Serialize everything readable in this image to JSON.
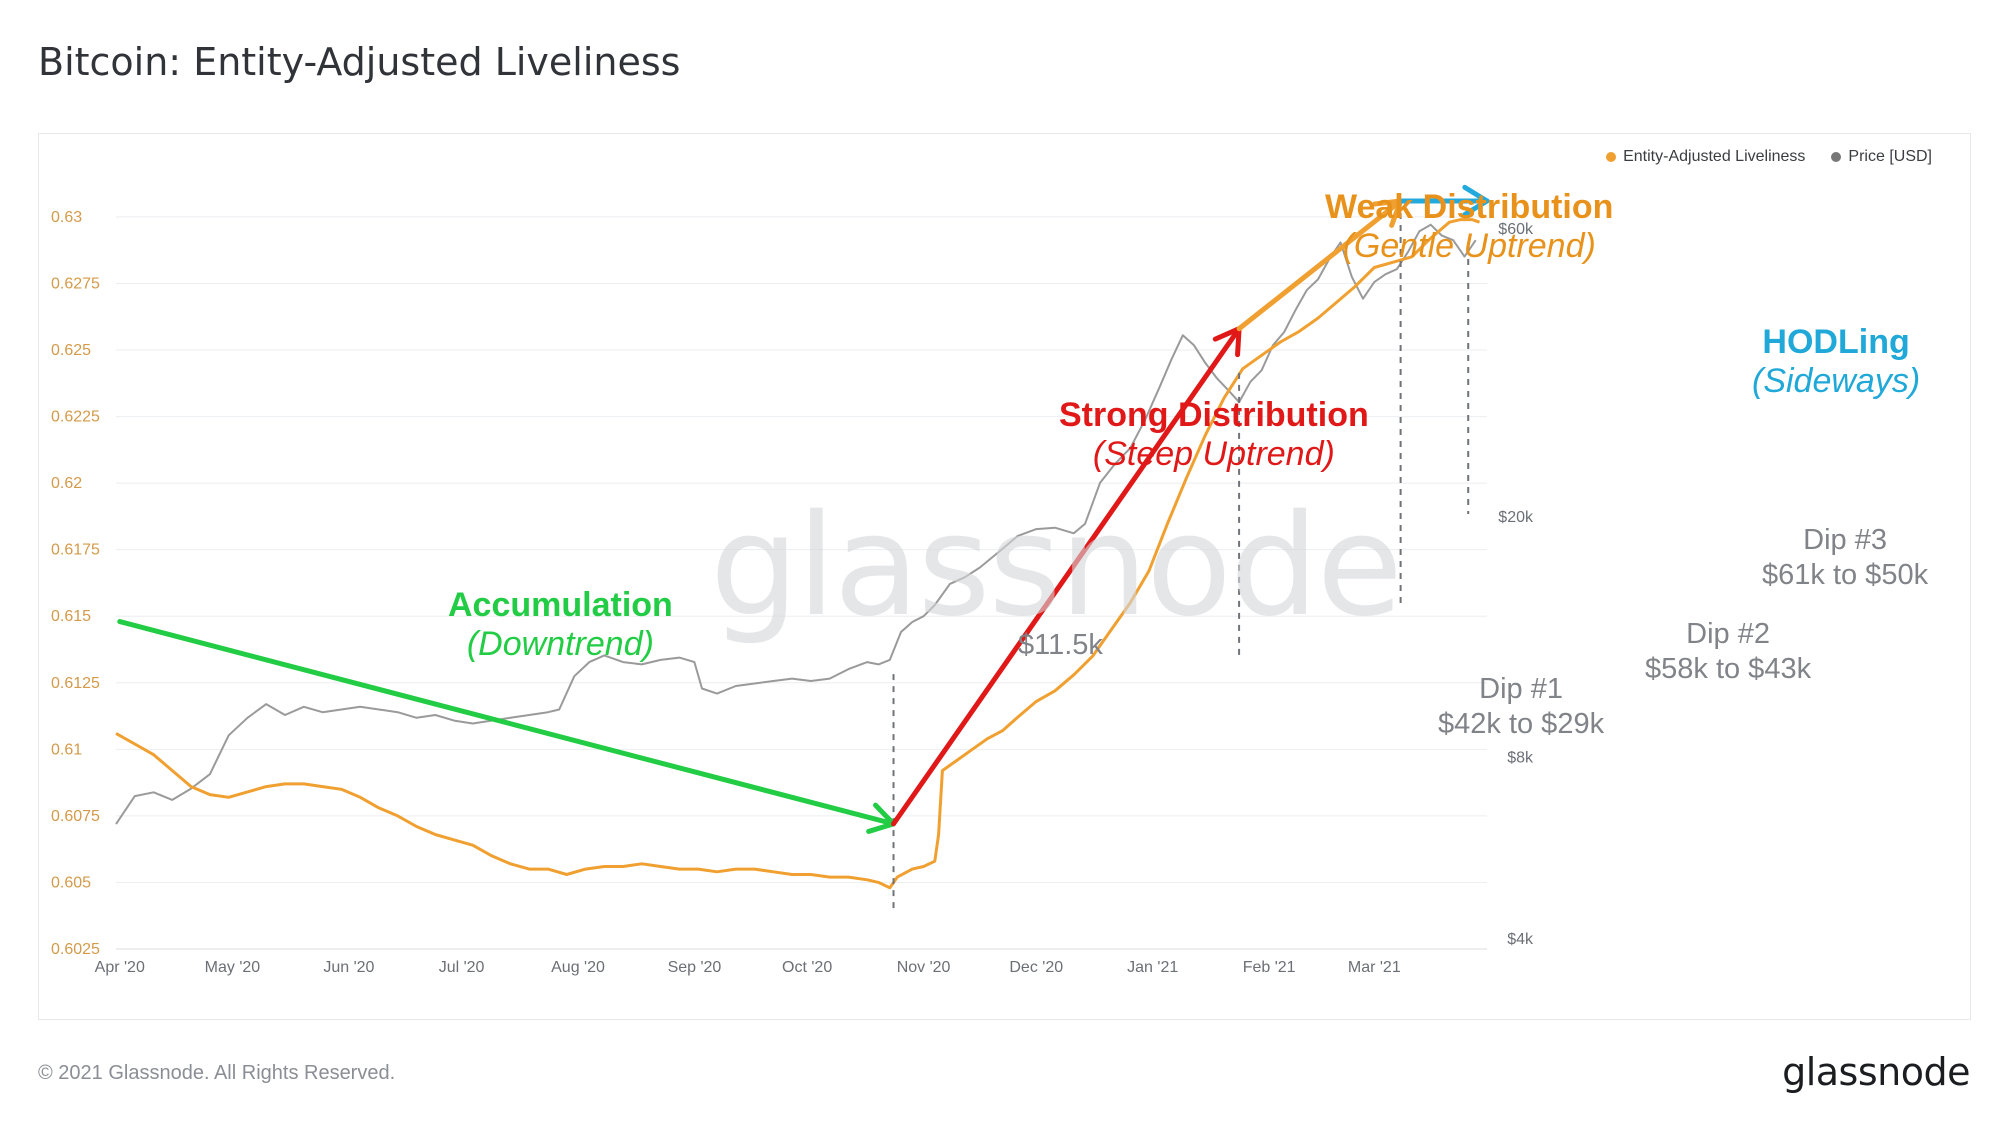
{
  "header": {
    "title": "Bitcoin: Entity-Adjusted Liveliness"
  },
  "footer": {
    "copyright": "© 2021 Glassnode. All Rights Reserved.",
    "brand": "glassnode"
  },
  "watermark": "glassnode",
  "colors": {
    "liveliness": "#f0a030",
    "price": "#9a9a9a",
    "accumulation": "#22cc44",
    "strong": "#e01818",
    "weak": "#f0a030",
    "hodl": "#22aadd",
    "grid": "#eceef1",
    "left_tick": "#d49a4a",
    "axis_text": "#6b6f76"
  },
  "legend": [
    {
      "label": "Entity-Adjusted Liveliness",
      "color": "#f0a030"
    },
    {
      "label": "Price [USD]",
      "color": "#777777"
    }
  ],
  "annotations": {
    "accumulation": {
      "title": "Accumulation",
      "subtitle": "(Downtrend)"
    },
    "strong": {
      "title": "Strong Distribution",
      "subtitle": "(Steep Uptrend)"
    },
    "weak": {
      "title": "Weak Distribution",
      "subtitle": "(Gentle Uptrend)"
    },
    "hodl": {
      "title": "HODLing",
      "subtitle": "(Sideways)"
    },
    "low_price": "$11.5k",
    "dips": [
      {
        "label": "Dip #1",
        "detail": "$42k to $29k"
      },
      {
        "label": "Dip #2",
        "detail": "$58k to $43k"
      },
      {
        "label": "Dip #3",
        "detail": "$61k to $50k"
      }
    ]
  },
  "chart_data": {
    "type": "line",
    "title": "Bitcoin: Entity-Adjusted Liveliness",
    "x_range": [
      "2020-03-31",
      "2021-03-30"
    ],
    "x_ticks": [
      {
        "label": "Apr '20",
        "day": 1
      },
      {
        "label": "May '20",
        "day": 31
      },
      {
        "label": "Jun '20",
        "day": 62
      },
      {
        "label": "Jul '20",
        "day": 92
      },
      {
        "label": "Aug '20",
        "day": 123
      },
      {
        "label": "Sep '20",
        "day": 154
      },
      {
        "label": "Oct '20",
        "day": 184
      },
      {
        "label": "Nov '20",
        "day": 215
      },
      {
        "label": "Dec '20",
        "day": 245
      },
      {
        "label": "Jan '21",
        "day": 276
      },
      {
        "label": "Feb '21",
        "day": 307
      },
      {
        "label": "Mar '21",
        "day": 335
      }
    ],
    "y_left": {
      "label": "Entity-Adjusted Liveliness",
      "range": [
        0.6025,
        0.6318
      ],
      "ticks": [
        "0.6025",
        "0.605",
        "0.6075",
        "0.61",
        "0.6125",
        "0.615",
        "0.6175",
        "0.62",
        "0.6225",
        "0.625",
        "0.6275",
        "0.63"
      ]
    },
    "y_right": {
      "label": "Price [USD]",
      "scale": "log",
      "range": [
        4000,
        60000
      ],
      "ticks": [
        {
          "label": "$4k",
          "value": 4000
        },
        {
          "label": "$8k",
          "value": 8000
        },
        {
          "label": "$20k",
          "value": 20000
        },
        {
          "label": "$60k",
          "value": 60000
        }
      ]
    },
    "series": [
      {
        "name": "Entity-Adjusted Liveliness",
        "axis": "left",
        "points": [
          [
            0,
            0.6106
          ],
          [
            5,
            0.6102
          ],
          [
            10,
            0.6098
          ],
          [
            15,
            0.6092
          ],
          [
            20,
            0.6086
          ],
          [
            25,
            0.6083
          ],
          [
            30,
            0.6082
          ],
          [
            35,
            0.6084
          ],
          [
            40,
            0.6086
          ],
          [
            45,
            0.6087
          ],
          [
            50,
            0.6087
          ],
          [
            55,
            0.6086
          ],
          [
            60,
            0.6085
          ],
          [
            65,
            0.6082
          ],
          [
            70,
            0.6078
          ],
          [
            75,
            0.6075
          ],
          [
            80,
            0.6071
          ],
          [
            85,
            0.6068
          ],
          [
            90,
            0.6066
          ],
          [
            95,
            0.6064
          ],
          [
            100,
            0.606
          ],
          [
            105,
            0.6057
          ],
          [
            110,
            0.6055
          ],
          [
            115,
            0.6055
          ],
          [
            120,
            0.6053
          ],
          [
            125,
            0.6055
          ],
          [
            130,
            0.6056
          ],
          [
            135,
            0.6056
          ],
          [
            140,
            0.6057
          ],
          [
            145,
            0.6056
          ],
          [
            150,
            0.6055
          ],
          [
            155,
            0.6055
          ],
          [
            160,
            0.6054
          ],
          [
            165,
            0.6055
          ],
          [
            170,
            0.6055
          ],
          [
            175,
            0.6054
          ],
          [
            180,
            0.6053
          ],
          [
            185,
            0.6053
          ],
          [
            190,
            0.6052
          ],
          [
            195,
            0.6052
          ],
          [
            200,
            0.6051
          ],
          [
            203,
            0.605
          ],
          [
            206,
            0.6048
          ],
          [
            208,
            0.6052
          ],
          [
            212,
            0.6055
          ],
          [
            215,
            0.6056
          ],
          [
            218,
            0.6058
          ],
          [
            219,
            0.6068
          ],
          [
            220,
            0.6092
          ],
          [
            224,
            0.6096
          ],
          [
            228,
            0.61
          ],
          [
            232,
            0.6104
          ],
          [
            236,
            0.6107
          ],
          [
            240,
            0.6112
          ],
          [
            245,
            0.6118
          ],
          [
            250,
            0.6122
          ],
          [
            255,
            0.6128
          ],
          [
            260,
            0.6135
          ],
          [
            265,
            0.6145
          ],
          [
            270,
            0.6155
          ],
          [
            275,
            0.6167
          ],
          [
            280,
            0.6185
          ],
          [
            285,
            0.6202
          ],
          [
            290,
            0.6218
          ],
          [
            295,
            0.6232
          ],
          [
            300,
            0.6243
          ],
          [
            305,
            0.6248
          ],
          [
            310,
            0.6253
          ],
          [
            315,
            0.6257
          ],
          [
            320,
            0.6262
          ],
          [
            325,
            0.6268
          ],
          [
            330,
            0.6274
          ],
          [
            335,
            0.6281
          ],
          [
            340,
            0.6283
          ],
          [
            345,
            0.6285
          ],
          [
            350,
            0.6292
          ],
          [
            355,
            0.6298
          ],
          [
            358,
            0.6299
          ],
          [
            361,
            0.6299
          ],
          [
            363,
            0.6298
          ]
        ]
      },
      {
        "name": "Price [USD]",
        "axis": "right",
        "points": [
          [
            0,
            6200
          ],
          [
            5,
            6900
          ],
          [
            10,
            7000
          ],
          [
            15,
            6800
          ],
          [
            20,
            7100
          ],
          [
            25,
            7500
          ],
          [
            30,
            8700
          ],
          [
            35,
            9300
          ],
          [
            40,
            9800
          ],
          [
            45,
            9400
          ],
          [
            50,
            9700
          ],
          [
            55,
            9500
          ],
          [
            60,
            9600
          ],
          [
            65,
            9700
          ],
          [
            70,
            9600
          ],
          [
            75,
            9500
          ],
          [
            80,
            9300
          ],
          [
            85,
            9400
          ],
          [
            90,
            9200
          ],
          [
            95,
            9100
          ],
          [
            100,
            9200
          ],
          [
            105,
            9300
          ],
          [
            110,
            9400
          ],
          [
            115,
            9500
          ],
          [
            118,
            9600
          ],
          [
            122,
            10900
          ],
          [
            126,
            11500
          ],
          [
            130,
            11800
          ],
          [
            135,
            11500
          ],
          [
            140,
            11400
          ],
          [
            145,
            11600
          ],
          [
            150,
            11700
          ],
          [
            154,
            11500
          ],
          [
            156,
            10400
          ],
          [
            160,
            10200
          ],
          [
            165,
            10500
          ],
          [
            170,
            10600
          ],
          [
            175,
            10700
          ],
          [
            180,
            10800
          ],
          [
            185,
            10700
          ],
          [
            190,
            10800
          ],
          [
            195,
            11200
          ],
          [
            200,
            11500
          ],
          [
            203,
            11400
          ],
          [
            206,
            11600
          ],
          [
            209,
            12900
          ],
          [
            212,
            13400
          ],
          [
            215,
            13700
          ],
          [
            218,
            14300
          ],
          [
            222,
            15500
          ],
          [
            226,
            15900
          ],
          [
            230,
            16500
          ],
          [
            235,
            17500
          ],
          [
            240,
            18600
          ],
          [
            245,
            19100
          ],
          [
            250,
            19200
          ],
          [
            255,
            18800
          ],
          [
            258,
            19500
          ],
          [
            262,
            22800
          ],
          [
            266,
            24500
          ],
          [
            270,
            26000
          ],
          [
            274,
            29000
          ],
          [
            278,
            33000
          ],
          [
            281,
            36500
          ],
          [
            284,
            40000
          ],
          [
            287,
            38500
          ],
          [
            290,
            36000
          ],
          [
            293,
            34000
          ],
          [
            296,
            32500
          ],
          [
            299,
            31000
          ],
          [
            302,
            33500
          ],
          [
            305,
            35000
          ],
          [
            308,
            38500
          ],
          [
            311,
            40500
          ],
          [
            314,
            44000
          ],
          [
            317,
            47500
          ],
          [
            320,
            49500
          ],
          [
            323,
            53500
          ],
          [
            326,
            57000
          ],
          [
            329,
            50000
          ],
          [
            332,
            46000
          ],
          [
            335,
            49000
          ],
          [
            338,
            50500
          ],
          [
            341,
            51500
          ],
          [
            344,
            55000
          ],
          [
            347,
            59500
          ],
          [
            350,
            61000
          ],
          [
            353,
            58500
          ],
          [
            356,
            57500
          ],
          [
            359,
            54000
          ],
          [
            362,
            57500
          ]
        ]
      }
    ],
    "annotation_arrows": [
      {
        "name": "Accumulation",
        "from": [
          1,
          0.6148
        ],
        "to": [
          207,
          0.6072
        ]
      },
      {
        "name": "Strong Distribution",
        "from": [
          207,
          0.6072
        ],
        "to": [
          299,
          0.6258
        ]
      },
      {
        "name": "Weak Distribution",
        "from": [
          299,
          0.6258
        ],
        "to": [
          342,
          0.6306
        ]
      },
      {
        "name": "HODLing",
        "from": [
          342,
          0.6306
        ],
        "to": [
          365,
          0.6306
        ]
      }
    ],
    "markers": [
      {
        "label": "$11.5k",
        "day": 207
      },
      {
        "label": "Dip #1",
        "day": 299
      },
      {
        "label": "Dip #2",
        "day": 342
      },
      {
        "label": "Dip #3",
        "day": 360
      }
    ]
  }
}
